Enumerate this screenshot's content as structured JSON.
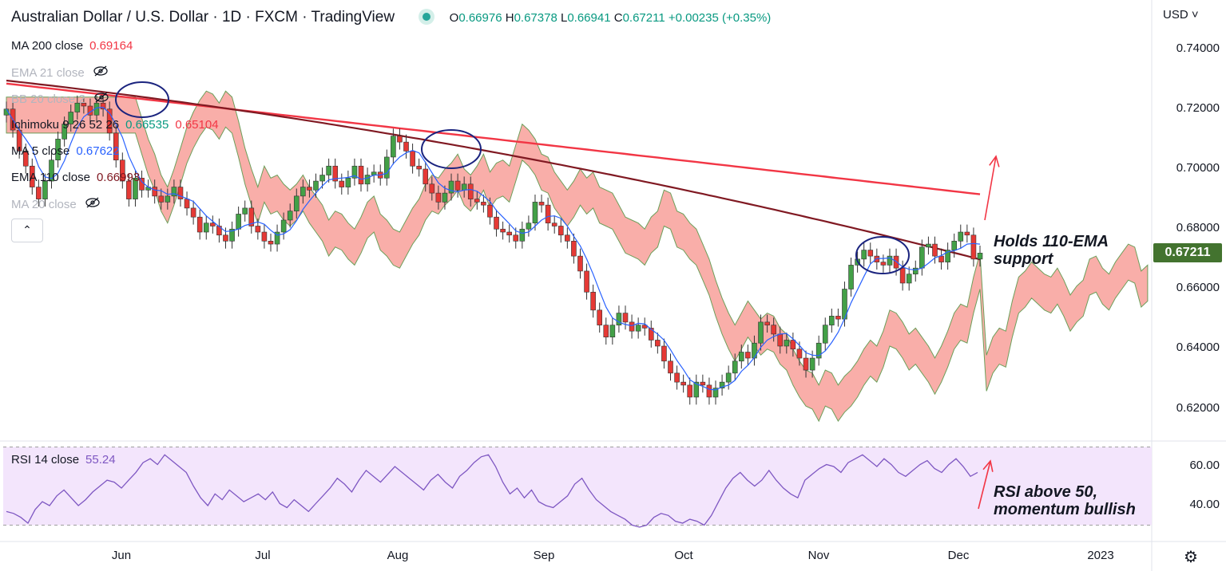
{
  "header": {
    "title": "Australian Dollar / U.S. Dollar · 1D · FXCM · TradingView",
    "open_label": "O",
    "open": "0.66976",
    "high_label": "H",
    "high": "0.67378",
    "low_label": "L",
    "low": "0.66941",
    "close_label": "C",
    "close": "0.67211",
    "change": "+0.00235 (+0.35%)"
  },
  "legend": [
    {
      "name": "MA 200 close",
      "value": "0.69164",
      "value_color": "#f23645",
      "visible": true
    },
    {
      "name": "EMA 21 close",
      "value": "",
      "visible": false
    },
    {
      "name": "BB 20 close 2",
      "value": "",
      "visible": false
    },
    {
      "name": "Ichimoku 9 26 52 26",
      "value": "0.66535",
      "value2": "0.65104",
      "value_color": "#089981",
      "value2_color": "#f23645",
      "visible": true
    },
    {
      "name": "MA 5 close",
      "value": "0.67622",
      "value_color": "#2962ff",
      "visible": true
    },
    {
      "name": "EMA 110 close",
      "value": "0.66993",
      "value_color": "#801922",
      "visible": true
    },
    {
      "name": "MA 20 close",
      "value": "",
      "visible": false
    }
  ],
  "rsi_legend": {
    "name": "RSI 14 close",
    "value": "55.24"
  },
  "currency": "USD",
  "last_price_tag": "0.67211",
  "annotations": {
    "ema_note_line1": "Holds 110-EMA",
    "ema_note_line2": "support",
    "rsi_note_line1": "RSI above 50,",
    "rsi_note_line2": "momentum bullish"
  },
  "icons": {
    "collapse": "chevron-up-icon",
    "hidden": "eye-off-icon",
    "settings": "gear-icon",
    "currency_dropdown": "chevron-down-icon"
  },
  "colors": {
    "up": "#43a047",
    "down": "#e53935",
    "ma200": "#f23645",
    "ema110": "#801922",
    "ma5": "#2962ff",
    "cloud_bull": "#a5d6a7",
    "cloud_bear": "#f8a09a",
    "rsi": "#7e57c2",
    "rsi_band": "#f3e5fc",
    "arrow": "#f23645",
    "circle": "#1a237e"
  },
  "chart_data": [
    {
      "type": "candlestick",
      "title": "Australian Dollar / U.S. Dollar · 1D · FXCM · TradingView",
      "x_ticks": [
        "Jun",
        "Jul",
        "Aug",
        "Sep",
        "Oct",
        "Nov",
        "Dec",
        "2023"
      ],
      "y_ticks": [
        "0.62000",
        "0.64000",
        "0.66000",
        "0.68000",
        "0.70000",
        "0.72000",
        "0.74000"
      ],
      "ylim": [
        0.6105,
        0.7485
      ],
      "ohlc_last": {
        "open": 0.66976,
        "high": 0.67378,
        "low": 0.66941,
        "close": 0.67211
      },
      "closes_approx": [
        0.72,
        0.713,
        0.706,
        0.701,
        0.694,
        0.69,
        0.696,
        0.703,
        0.71,
        0.715,
        0.719,
        0.722,
        0.721,
        0.718,
        0.722,
        0.72,
        0.712,
        0.703,
        0.696,
        0.69,
        0.697,
        0.693,
        0.694,
        0.691,
        0.689,
        0.691,
        0.694,
        0.69,
        0.687,
        0.684,
        0.679,
        0.682,
        0.681,
        0.678,
        0.676,
        0.68,
        0.685,
        0.687,
        0.681,
        0.679,
        0.676,
        0.675,
        0.679,
        0.683,
        0.686,
        0.691,
        0.694,
        0.693,
        0.696,
        0.698,
        0.701,
        0.696,
        0.694,
        0.697,
        0.701,
        0.695,
        0.698,
        0.699,
        0.697,
        0.704,
        0.711,
        0.709,
        0.706,
        0.701,
        0.7,
        0.695,
        0.692,
        0.689,
        0.692,
        0.696,
        0.693,
        0.695,
        0.69,
        0.689,
        0.688,
        0.684,
        0.68,
        0.679,
        0.678,
        0.676,
        0.68,
        0.682,
        0.689,
        0.688,
        0.682,
        0.681,
        0.678,
        0.676,
        0.671,
        0.666,
        0.659,
        0.653,
        0.648,
        0.644,
        0.648,
        0.652,
        0.649,
        0.646,
        0.648,
        0.647,
        0.643,
        0.641,
        0.636,
        0.632,
        0.629,
        0.628,
        0.624,
        0.629,
        0.628,
        0.624,
        0.627,
        0.629,
        0.632,
        0.636,
        0.639,
        0.637,
        0.642,
        0.649,
        0.648,
        0.645,
        0.641,
        0.643,
        0.64,
        0.637,
        0.633,
        0.637,
        0.642,
        0.648,
        0.651,
        0.65,
        0.66,
        0.668,
        0.67,
        0.673,
        0.671,
        0.669,
        0.668,
        0.671,
        0.667,
        0.662,
        0.665,
        0.667,
        0.674,
        0.675,
        0.671,
        0.669,
        0.673,
        0.676,
        0.679,
        0.678,
        0.67,
        0.672
      ],
      "ma200_approx": {
        "start": 0.7285,
        "end": 0.6916
      },
      "ema110_approx": {
        "start": 0.7295,
        "end": 0.6699
      },
      "series": [
        {
          "name": "MA 200 close",
          "last": 0.69164
        },
        {
          "name": "EMA 110 close",
          "last": 0.66993
        },
        {
          "name": "MA 5 close",
          "last": 0.67622
        },
        {
          "name": "Ichimoku 9 26 52 26",
          "last": 0.66535,
          "last2": 0.65104
        }
      ]
    },
    {
      "type": "line",
      "title": "RSI 14 close",
      "y_ticks": [
        "40.00",
        "60.00"
      ],
      "ylim": [
        25,
        70
      ],
      "bands": [
        30,
        70
      ],
      "last": 55.24,
      "values_approx": [
        37,
        36,
        34,
        31,
        38,
        42,
        40,
        45,
        48,
        44,
        40,
        43,
        47,
        50,
        53,
        52,
        49,
        53,
        57,
        62,
        64,
        61,
        66,
        63,
        60,
        57,
        50,
        44,
        40,
        46,
        43,
        48,
        45,
        42,
        44,
        46,
        43,
        47,
        41,
        39,
        43,
        40,
        37,
        41,
        45,
        49,
        54,
        51,
        47,
        53,
        58,
        55,
        52,
        56,
        60,
        57,
        54,
        51,
        48,
        53,
        56,
        52,
        49,
        55,
        58,
        62,
        65,
        66,
        60,
        52,
        46,
        49,
        44,
        48,
        42,
        40,
        39,
        42,
        45,
        51,
        54,
        48,
        43,
        40,
        37,
        35,
        33,
        30,
        29,
        30,
        34,
        36,
        35,
        32,
        31,
        33,
        32,
        30,
        35,
        42,
        49,
        54,
        57,
        53,
        50,
        53,
        58,
        53,
        49,
        46,
        44,
        53,
        56,
        59,
        61,
        60,
        57,
        62,
        64,
        66,
        63,
        60,
        64,
        61,
        57,
        55,
        58,
        61,
        63,
        59,
        57,
        61,
        64,
        60,
        55,
        57
      ]
    }
  ]
}
